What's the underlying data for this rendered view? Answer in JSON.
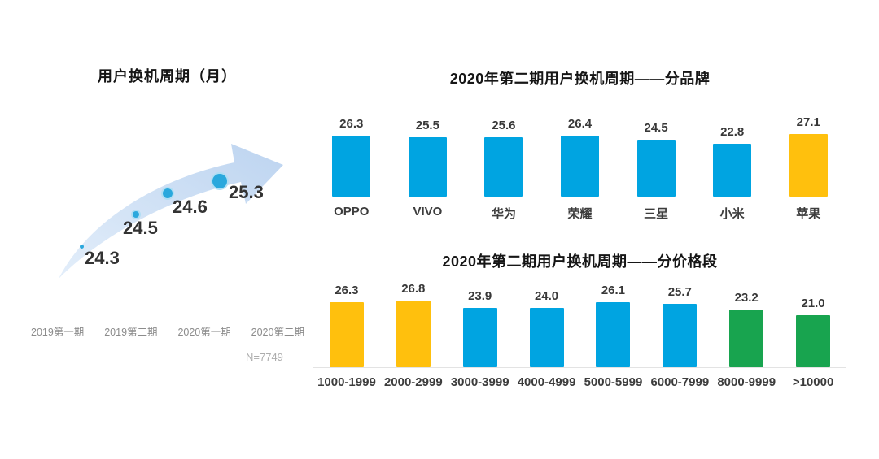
{
  "colors": {
    "blue": "#00A4E1",
    "yellow": "#FFC00D",
    "green": "#18A44F",
    "bubble_fill": "#2AA8DD",
    "bubble_ring": "#B0DEF4",
    "arrow_light": "#E3EEFA",
    "arrow_dark": "#BDD4F0"
  },
  "chart_data": [
    {
      "type": "scatter",
      "title": "用户换机周期（月）",
      "categories": [
        "2019第一期",
        "2019第二期",
        "2020第一期",
        "2020第二期"
      ],
      "values": [
        24.3,
        24.5,
        24.6,
        25.3
      ],
      "annotation": "N=7749",
      "style_hint": "ascending bubble trend over light-blue swoosh arrow, bubble size grows with value",
      "grid": false
    },
    {
      "type": "bar",
      "title": "2020年第二期用户换机周期——分品牌",
      "categories": [
        "OPPO",
        "VIVO",
        "华为",
        "荣耀",
        "三星",
        "小米",
        "苹果"
      ],
      "values": [
        26.3,
        25.5,
        25.6,
        26.4,
        24.5,
        22.8,
        27.1
      ],
      "bar_colors": [
        "#00A4E1",
        "#00A4E1",
        "#00A4E1",
        "#00A4E1",
        "#00A4E1",
        "#00A4E1",
        "#FFC00D"
      ],
      "value_labels_shown": true,
      "grid": false
    },
    {
      "type": "bar",
      "title": "2020年第二期用户换机周期——分价格段",
      "categories": [
        "1000-1999",
        "2000-2999",
        "3000-3999",
        "4000-4999",
        "5000-5999",
        "6000-7999",
        "8000-9999",
        ">10000"
      ],
      "values": [
        26.3,
        26.8,
        23.9,
        24.0,
        26.1,
        25.7,
        23.2,
        21.0
      ],
      "bar_colors": [
        "#FFC00D",
        "#FFC00D",
        "#00A4E1",
        "#00A4E1",
        "#00A4E1",
        "#00A4E1",
        "#18A44F",
        "#18A44F"
      ],
      "value_labels_shown": true,
      "grid": false
    }
  ]
}
